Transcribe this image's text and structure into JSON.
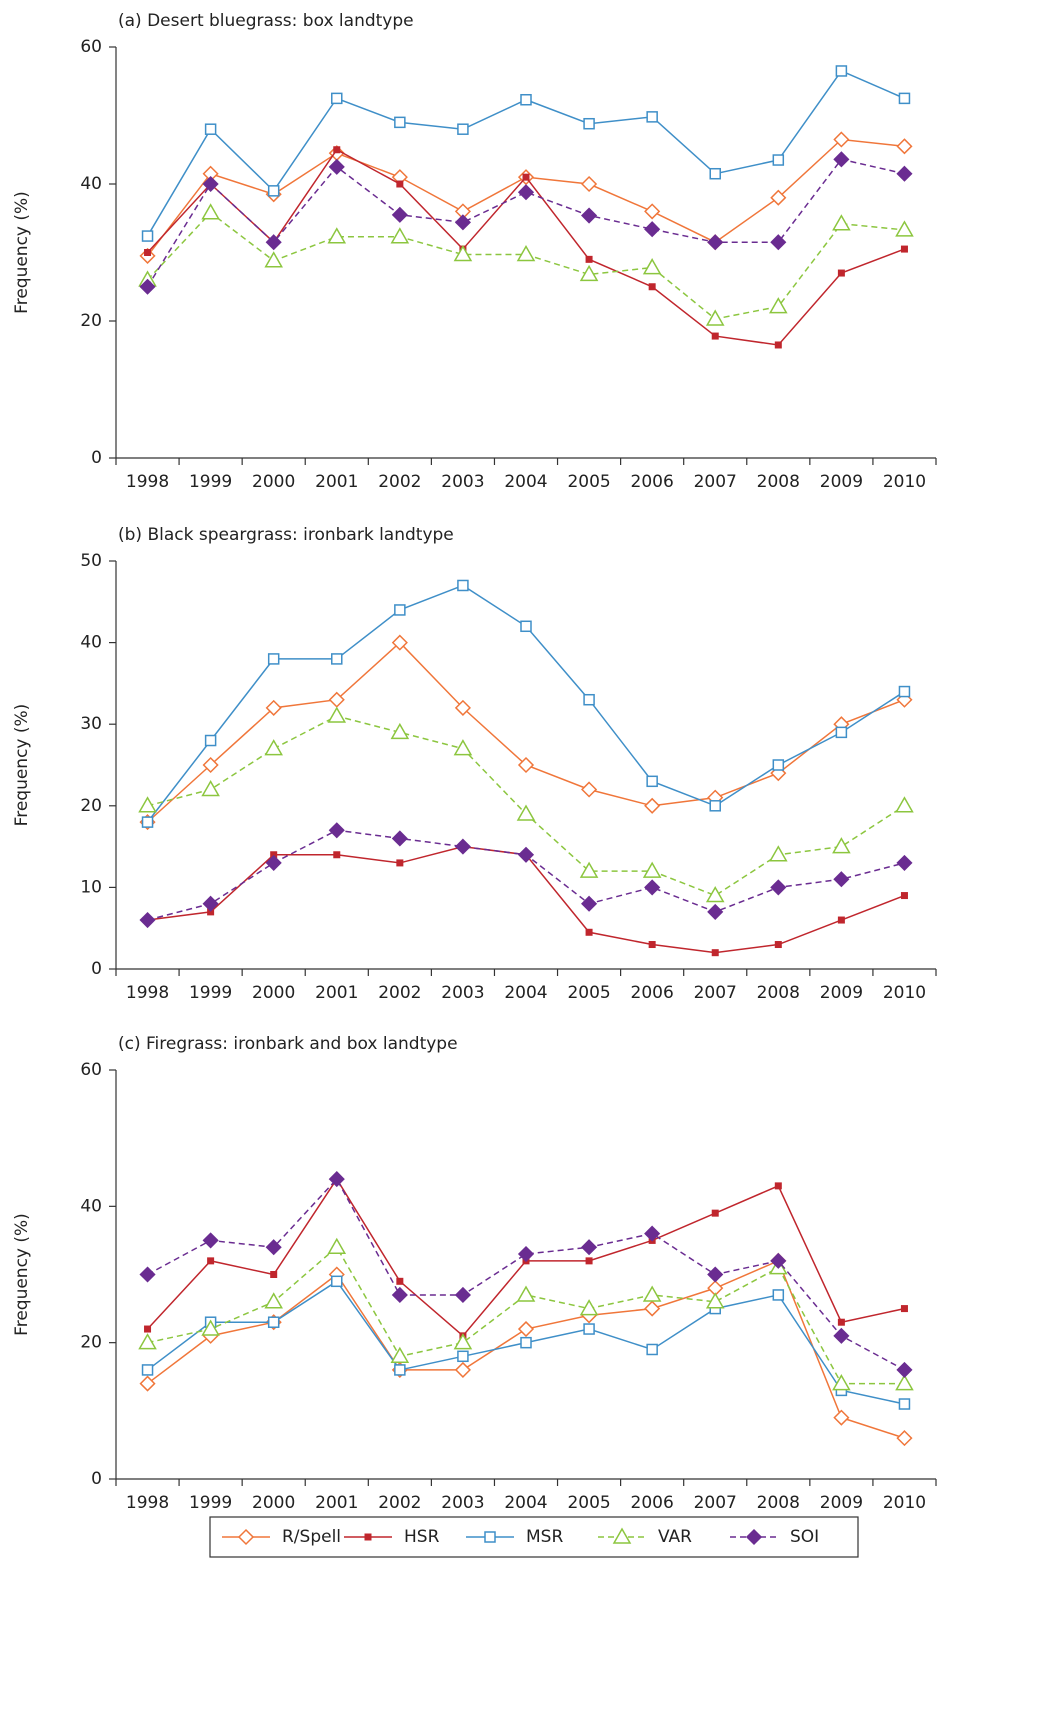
{
  "chart_data": [
    {
      "type": "line",
      "title": "(a) Desert bluegrass: box landtype",
      "y_label": "Frequency (%)",
      "categories": [
        "1998",
        "1999",
        "2000",
        "2001",
        "2002",
        "2003",
        "2004",
        "2005",
        "2006",
        "2007",
        "2008",
        "2009",
        "2010"
      ],
      "ylim": [
        0,
        60
      ],
      "yticks": [
        0,
        20,
        40,
        60
      ],
      "series": [
        {
          "name": "R/Spell",
          "color": "#f0763a",
          "marker": "diamond-open",
          "dashed": false,
          "values": [
            29.5,
            41.5,
            38.5,
            44.5,
            41,
            36,
            41,
            40,
            36,
            31.5,
            38,
            46.5,
            45.5
          ]
        },
        {
          "name": "HSR",
          "color": "#c0262d",
          "marker": "square-filled",
          "dashed": false,
          "values": [
            30,
            40,
            31.5,
            45,
            40,
            30.5,
            41,
            29,
            25,
            17.8,
            16.5,
            27,
            30.5
          ]
        },
        {
          "name": "MSR",
          "color": "#3f8fc8",
          "marker": "square-open",
          "dashed": false,
          "values": [
            32.4,
            48,
            39,
            52.5,
            49,
            48,
            52.3,
            48.8,
            49.8,
            41.5,
            43.5,
            56.5,
            52.5
          ]
        },
        {
          "name": "VAR",
          "color": "#8cc63f",
          "marker": "triangle-open",
          "dashed": true,
          "values": [
            26,
            35.8,
            28.8,
            32.3,
            32.3,
            29.7,
            29.7,
            26.8,
            27.8,
            20.3,
            22.1,
            34.2,
            33.3
          ]
        },
        {
          "name": "SOI",
          "color": "#6a2c91",
          "marker": "diamond-filled",
          "dashed": true,
          "values": [
            25,
            40,
            31.5,
            42.5,
            35.5,
            34.4,
            38.8,
            35.4,
            33.4,
            31.5,
            31.5,
            43.6,
            41.5
          ]
        }
      ]
    },
    {
      "type": "line",
      "title": "(b) Black speargrass: ironbark landtype",
      "y_label": "Frequency (%)",
      "categories": [
        "1998",
        "1999",
        "2000",
        "2001",
        "2002",
        "2003",
        "2004",
        "2005",
        "2006",
        "2007",
        "2008",
        "2009",
        "2010"
      ],
      "ylim": [
        0,
        50
      ],
      "yticks": [
        0,
        10,
        20,
        30,
        40,
        50
      ],
      "series": [
        {
          "color": "#f0763a",
          "marker": "diamond-open",
          "dashed": false,
          "values": [
            18,
            25,
            32,
            33,
            40,
            32,
            25,
            22,
            20,
            21,
            24,
            30,
            33
          ]
        },
        {
          "color": "#c0262d",
          "marker": "square-filled",
          "dashed": false,
          "values": [
            6,
            7,
            14,
            14,
            13,
            15,
            14,
            4.5,
            3,
            2,
            3,
            6,
            9
          ]
        },
        {
          "color": "#3f8fc8",
          "marker": "square-open",
          "dashed": false,
          "values": [
            18,
            28,
            38,
            38,
            44,
            47,
            42,
            33,
            23,
            20,
            25,
            29,
            34
          ]
        },
        {
          "color": "#8cc63f",
          "marker": "triangle-open",
          "dashed": true,
          "values": [
            20,
            22,
            27,
            31,
            29,
            27,
            19,
            12,
            12,
            9,
            14,
            15,
            20
          ]
        },
        {
          "color": "#6a2c91",
          "marker": "diamond-filled",
          "dashed": true,
          "values": [
            6,
            8,
            13,
            17,
            16,
            15,
            14,
            8,
            10,
            7,
            10,
            11,
            13
          ]
        }
      ]
    },
    {
      "type": "line",
      "title": "(c) Firegrass: ironbark and box landtype",
      "y_label": "Frequency (%)",
      "categories": [
        "1998",
        "1999",
        "2000",
        "2001",
        "2002",
        "2003",
        "2004",
        "2005",
        "2006",
        "2007",
        "2008",
        "2009",
        "2010"
      ],
      "ylim": [
        0,
        60
      ],
      "yticks": [
        0,
        20,
        40,
        60
      ],
      "series": [
        {
          "color": "#f0763a",
          "marker": "diamond-open",
          "dashed": false,
          "values": [
            14,
            21,
            23,
            30,
            16,
            16,
            22,
            24,
            25,
            28,
            32,
            9,
            6
          ]
        },
        {
          "color": "#c0262d",
          "marker": "square-filled",
          "dashed": false,
          "values": [
            22,
            32,
            30,
            44,
            29,
            21,
            32,
            32,
            35,
            39,
            43,
            23,
            25
          ]
        },
        {
          "color": "#3f8fc8",
          "marker": "square-open",
          "dashed": false,
          "values": [
            16,
            23,
            23,
            29,
            16,
            18,
            20,
            22,
            19,
            25,
            27,
            13,
            11
          ]
        },
        {
          "color": "#8cc63f",
          "marker": "triangle-open",
          "dashed": true,
          "values": [
            20,
            22,
            26,
            34,
            18,
            20,
            27,
            25,
            27,
            26,
            31,
            14,
            14
          ]
        },
        {
          "color": "#6a2c91",
          "marker": "diamond-filled",
          "dashed": true,
          "values": [
            30,
            35,
            34,
            44,
            27,
            27,
            33,
            34,
            36,
            30,
            32,
            21,
            16
          ]
        }
      ]
    }
  ]
}
